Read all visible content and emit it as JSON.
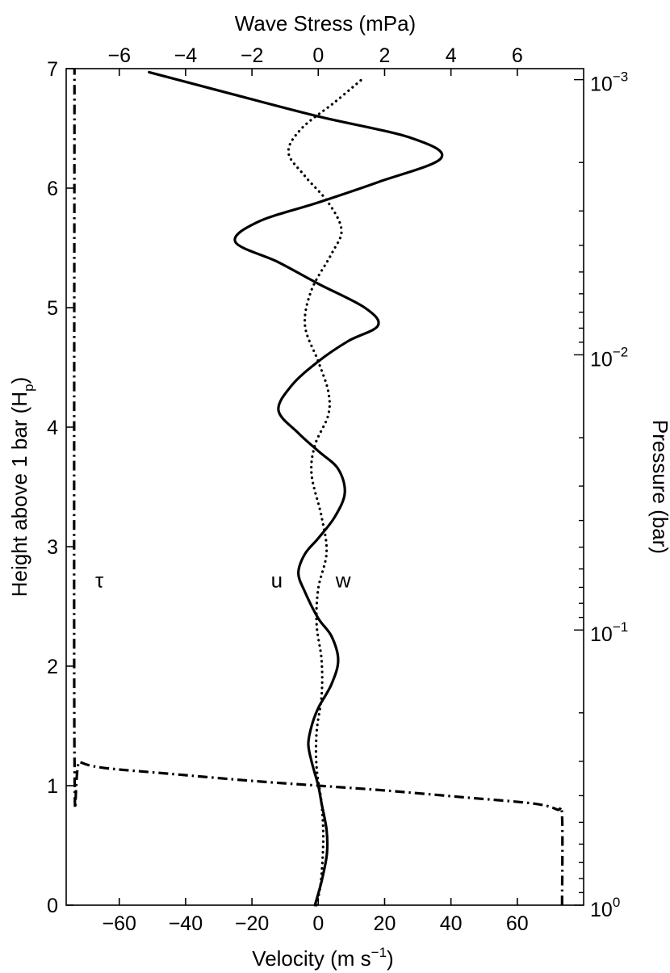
{
  "chart_data": {
    "type": "line",
    "xlabel_main": "Velocity (m s",
    "xlabel_sup": "−1",
    "xlabel_tail": ")",
    "x_top_label": "Wave Stress (mPa)",
    "ylabel_main": "Height above 1 bar (H",
    "ylabel_sub": "p",
    "ylabel_tail": ")",
    "y_right_label": "Pressure (bar)",
    "xlim": [
      -76,
      80
    ],
    "ylim": [
      0,
      7
    ],
    "x_top_lim": [
      -7.6,
      8.0
    ],
    "x_ticks": [
      -60,
      -40,
      -20,
      0,
      20,
      40,
      60
    ],
    "x_tick_labels": [
      "−60",
      "−40",
      "−20",
      "0",
      "20",
      "40",
      "60"
    ],
    "x_top_ticks": [
      -6,
      -4,
      -2,
      0,
      2,
      4,
      6
    ],
    "x_top_tick_labels": [
      "−6",
      "−4",
      "−2",
      "0",
      "2",
      "4",
      "6"
    ],
    "y_ticks": [
      0,
      1,
      2,
      3,
      4,
      5,
      6,
      7
    ],
    "y_tick_labels": [
      "0",
      "1",
      "2",
      "3",
      "4",
      "5",
      "6",
      "7"
    ],
    "y_right_scale": "log",
    "y_right_ticks": [
      {
        "pressure": 1,
        "base": "10",
        "exp": "0"
      },
      {
        "pressure": 0.1,
        "base": "10",
        "exp": "−1"
      },
      {
        "pressure": 0.01,
        "base": "10",
        "exp": "−2"
      },
      {
        "pressure": 0.001,
        "base": "10",
        "exp": "−3"
      }
    ],
    "grid": false,
    "series": [
      {
        "name": "u",
        "style": "solid",
        "x_axis": "bottom",
        "points": [
          [
            -1,
            0
          ],
          [
            1,
            0.2
          ],
          [
            2.6,
            0.43
          ],
          [
            2.5,
            0.63
          ],
          [
            1,
            0.85
          ],
          [
            0,
            1.0
          ],
          [
            -2,
            1.2
          ],
          [
            -3,
            1.35
          ],
          [
            -2,
            1.5
          ],
          [
            0,
            1.65
          ],
          [
            4,
            1.85
          ],
          [
            6,
            2.05
          ],
          [
            4,
            2.25
          ],
          [
            0,
            2.4
          ],
          [
            -4,
            2.62
          ],
          [
            -6,
            2.78
          ],
          [
            -4,
            2.94
          ],
          [
            0,
            3.07
          ],
          [
            5,
            3.25
          ],
          [
            8,
            3.45
          ],
          [
            6,
            3.65
          ],
          [
            0,
            3.8
          ],
          [
            -6,
            3.95
          ],
          [
            -12,
            4.14
          ],
          [
            -8,
            4.35
          ],
          [
            0,
            4.55
          ],
          [
            9,
            4.72
          ],
          [
            18,
            4.85
          ],
          [
            14,
            5.0
          ],
          [
            0,
            5.2
          ],
          [
            -12,
            5.38
          ],
          [
            -25,
            5.55
          ],
          [
            -18,
            5.72
          ],
          [
            0,
            5.88
          ],
          [
            18,
            6.05
          ],
          [
            37,
            6.25
          ],
          [
            28,
            6.42
          ],
          [
            0,
            6.6
          ],
          [
            -25,
            6.78
          ],
          [
            -51,
            6.97
          ]
        ]
      },
      {
        "name": "w",
        "style": "dotted",
        "x_axis": "bottom",
        "points": [
          [
            -0.5,
            0
          ],
          [
            0.8,
            0.2
          ],
          [
            1.5,
            0.55
          ],
          [
            1,
            0.85
          ],
          [
            -0.5,
            1.15
          ],
          [
            -0.5,
            1.45
          ],
          [
            1,
            1.75
          ],
          [
            1,
            2.05
          ],
          [
            -0.5,
            2.35
          ],
          [
            0,
            2.65
          ],
          [
            2.5,
            2.95
          ],
          [
            1,
            3.25
          ],
          [
            -2,
            3.6
          ],
          [
            -1,
            3.85
          ],
          [
            3,
            4.1
          ],
          [
            3,
            4.3
          ],
          [
            0,
            4.55
          ],
          [
            -4,
            4.85
          ],
          [
            -2,
            5.15
          ],
          [
            4,
            5.45
          ],
          [
            7,
            5.65
          ],
          [
            3,
            5.88
          ],
          [
            -4,
            6.1
          ],
          [
            -9,
            6.3
          ],
          [
            -5,
            6.5
          ],
          [
            5,
            6.72
          ],
          [
            14,
            6.93
          ]
        ]
      },
      {
        "name": "τ",
        "style": "dash-dot",
        "x_axis": "top",
        "points": [
          [
            7.35,
            0
          ],
          [
            7.35,
            0.75
          ],
          [
            7.2,
            0.8
          ],
          [
            6.5,
            0.85
          ],
          [
            4.5,
            0.9
          ],
          [
            2.0,
            0.96
          ],
          [
            0,
            1.0
          ],
          [
            -2.0,
            1.04
          ],
          [
            -4.5,
            1.1
          ],
          [
            -6.5,
            1.15
          ],
          [
            -7.2,
            1.2
          ],
          [
            -7.35,
            1.25
          ],
          [
            -7.35,
            7.0
          ]
        ]
      }
    ],
    "labels": [
      {
        "text": "τ",
        "x": -66,
        "y": 2.72
      },
      {
        "text": "u",
        "x": -12.5,
        "y": 2.72
      },
      {
        "text": "w",
        "x": 7.5,
        "y": 2.72
      }
    ]
  }
}
